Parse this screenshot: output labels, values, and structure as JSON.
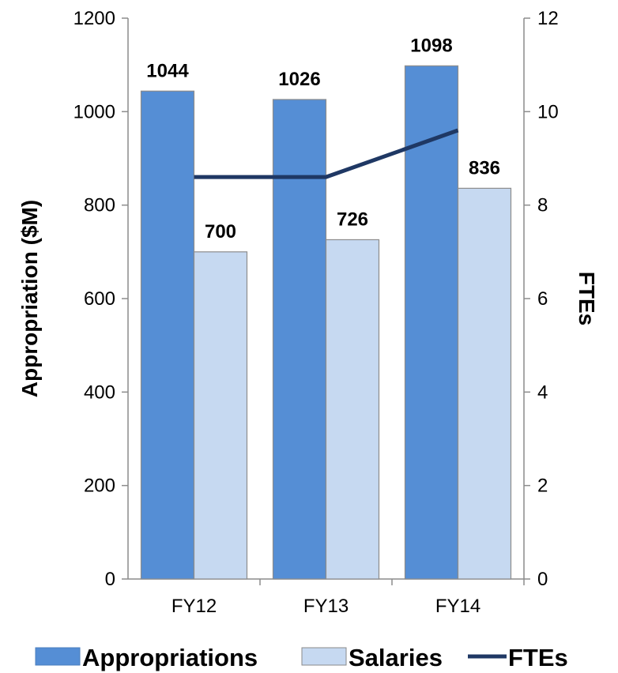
{
  "chart_data": {
    "type": "bar",
    "categories": [
      "FY12",
      "FY13",
      "FY14"
    ],
    "series": [
      {
        "name": "Appropriations",
        "kind": "bar",
        "axis": "left",
        "values": [
          1044,
          1026,
          1098
        ],
        "color": "#558ED5"
      },
      {
        "name": "Salaries",
        "kind": "bar",
        "axis": "left",
        "values": [
          700,
          726,
          836
        ],
        "color": "#C6D9F1"
      },
      {
        "name": "FTEs",
        "kind": "line",
        "axis": "right",
        "values": [
          8.6,
          8.6,
          9.6
        ],
        "color": "#1F3864"
      }
    ],
    "y_left": {
      "label": "Appropriation ($M)",
      "min": 0,
      "max": 1200,
      "ticks": [
        "0",
        "200",
        "400",
        "600",
        "800",
        "1000",
        "1200"
      ]
    },
    "y_right": {
      "label": "FTEs",
      "min": 0,
      "max": 12,
      "ticks": [
        "0",
        "2",
        "4",
        "6",
        "8",
        "10",
        "12"
      ]
    },
    "data_labels": {
      "Appropriations": [
        "1044",
        "1026",
        "1098"
      ],
      "Salaries": [
        "700",
        "726",
        "836"
      ]
    },
    "grid": false,
    "legend": "bottom"
  }
}
